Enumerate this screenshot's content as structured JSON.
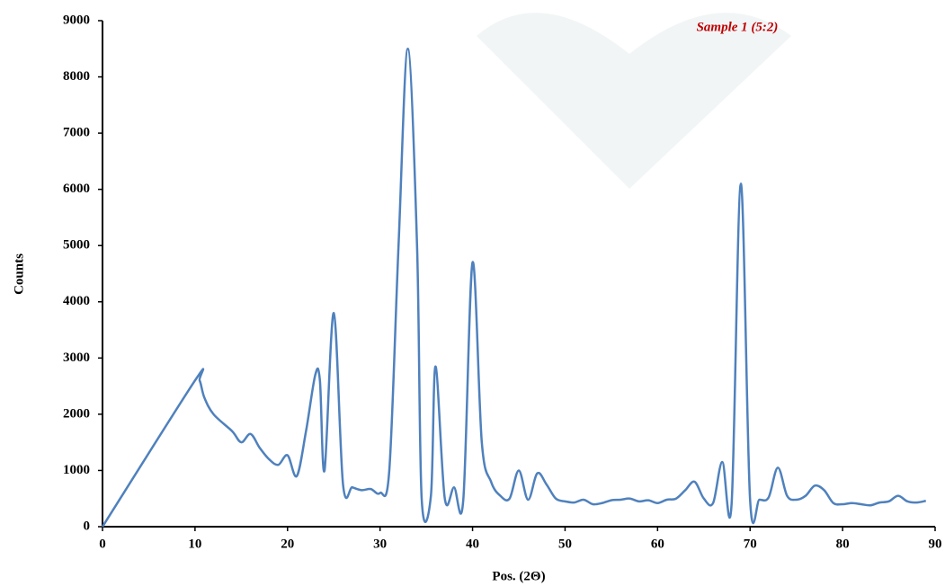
{
  "chart_data": {
    "type": "line",
    "annotation": "Sample 1 (5:2)",
    "xlabel": "Pos. (2Θ)",
    "ylabel": "Counts",
    "xlim": [
      0,
      90
    ],
    "xticks": [
      0,
      10,
      20,
      30,
      40,
      50,
      60,
      70,
      80,
      90
    ],
    "ylim": [
      0,
      9000
    ],
    "yticks": [
      0,
      1000,
      2000,
      3000,
      4000,
      5000,
      6000,
      7000,
      8000,
      9000
    ],
    "series": [
      {
        "color": "#4f81bd",
        "x": [
          0,
          10,
          10.5,
          11,
          12,
          14,
          15,
          16,
          17,
          18,
          19,
          20,
          21,
          22,
          23,
          23.5,
          24,
          25,
          26,
          27,
          28,
          29,
          30,
          31,
          32,
          33,
          34,
          34.5,
          35.5,
          36,
          37,
          38,
          39,
          40,
          41,
          42,
          43,
          44,
          45,
          46,
          47,
          48,
          49,
          50,
          51,
          52,
          53,
          54,
          55,
          56,
          57,
          58,
          59,
          60,
          61,
          62,
          63,
          64,
          65,
          66,
          67,
          68,
          69,
          70,
          71,
          72,
          73,
          74,
          75,
          76,
          77,
          78,
          79,
          80,
          81,
          82,
          83,
          84,
          85,
          86,
          87,
          88,
          89
        ],
        "values": [
          0,
          2600,
          2600,
          2300,
          2000,
          1700,
          1500,
          1650,
          1400,
          1200,
          1100,
          1270,
          900,
          1700,
          2700,
          2600,
          1000,
          3800,
          750,
          700,
          650,
          670,
          600,
          1000,
          5000,
          8500,
          5000,
          500,
          550,
          2850,
          500,
          700,
          480,
          4700,
          1500,
          800,
          550,
          500,
          1000,
          480,
          950,
          750,
          500,
          450,
          430,
          480,
          400,
          420,
          470,
          480,
          500,
          450,
          470,
          420,
          480,
          500,
          650,
          800,
          500,
          420,
          1150,
          400,
          6100,
          480,
          480,
          520,
          1050,
          550,
          480,
          550,
          730,
          650,
          420,
          400,
          420,
          400,
          380,
          430,
          450,
          550,
          450,
          430,
          460
        ]
      }
    ]
  }
}
